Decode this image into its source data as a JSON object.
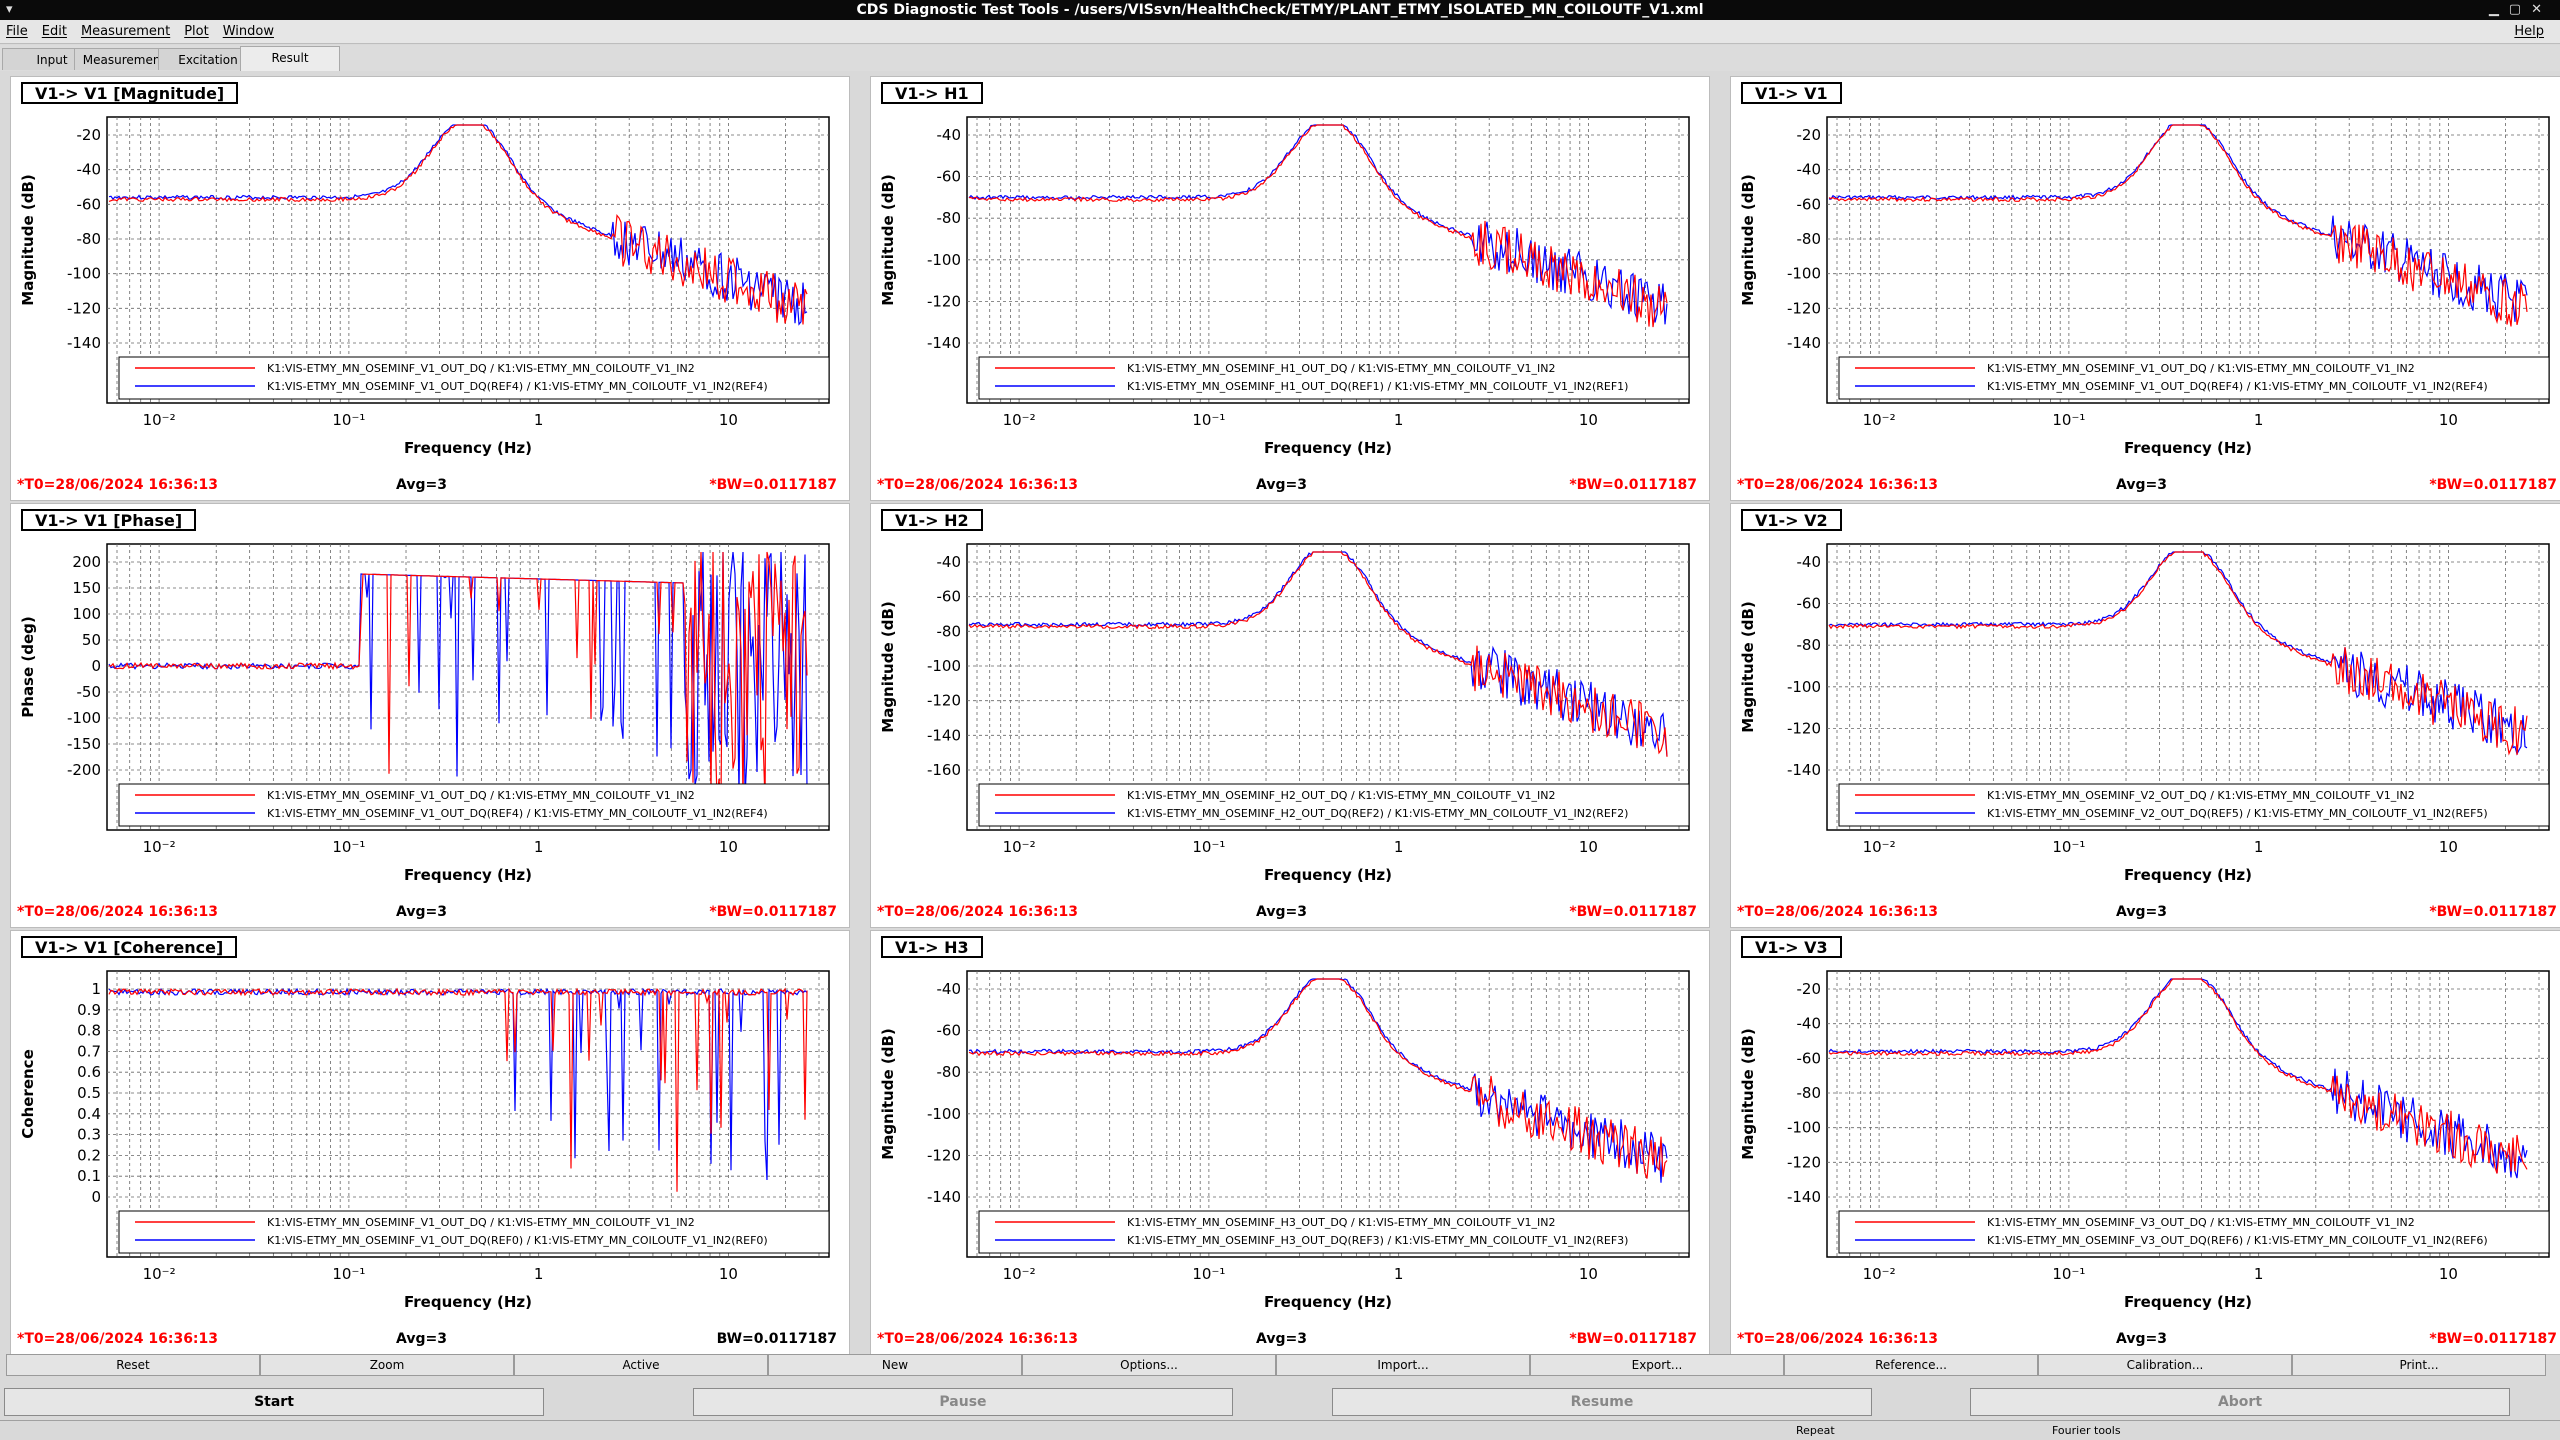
{
  "window": {
    "title": "CDS Diagnostic Test Tools - /users/VISsvn/HealthCheck/ETMY/PLANT_ETMY_ISOLATED_MN_COILOUTF_V1.xml"
  },
  "menu": [
    "File",
    "Edit",
    "Measurement",
    "Plot",
    "Window"
  ],
  "menu_help": "Help",
  "tabs": [
    "Input",
    "Measurement",
    "Excitation",
    "Result"
  ],
  "selected_tab": "Result",
  "common": {
    "t0": "*T0=28/06/2024 16:36:13",
    "avg": "Avg=3",
    "bw_star": "*BW=0.0117187",
    "bw_plain": "BW=0.0117187",
    "xlabel": "Frequency (Hz)",
    "xticks": [
      "10⁻²",
      "10⁻¹",
      "1",
      "10"
    ]
  },
  "colors": {
    "ref": "#0000ff",
    "live": "#ff0000",
    "title_red": "#ff0000"
  },
  "panels": [
    {
      "title": "V1-> V1 [Magnitude]",
      "ylabel": "Magnitude (dB)",
      "yticks": [
        "-20",
        "-40",
        "-60",
        "-80",
        "-100",
        "-120",
        "-140"
      ],
      "legend": [
        "K1:VIS-ETMY_MN_OSEMINF_V1_OUT_DQ / K1:VIS-ETMY_MN_COILOUTF_V1_IN2",
        "K1:VIS-ETMY_MN_OSEMINF_V1_OUT_DQ(REF4) / K1:VIS-ETMY_MN_COILOUTF_V1_IN2(REF4)"
      ],
      "bw": "star"
    },
    {
      "title": "V1-> H1",
      "ylabel": "Magnitude (dB)",
      "yticks": [
        "-40",
        "-60",
        "-80",
        "-100",
        "-120",
        "-140"
      ],
      "legend": [
        "K1:VIS-ETMY_MN_OSEMINF_H1_OUT_DQ / K1:VIS-ETMY_MN_COILOUTF_V1_IN2",
        "K1:VIS-ETMY_MN_OSEMINF_H1_OUT_DQ(REF1) / K1:VIS-ETMY_MN_COILOUTF_V1_IN2(REF1)"
      ],
      "bw": "star"
    },
    {
      "title": "V1-> V1",
      "ylabel": "Magnitude (dB)",
      "yticks": [
        "-20",
        "-40",
        "-60",
        "-80",
        "-100",
        "-120",
        "-140"
      ],
      "legend": [
        "K1:VIS-ETMY_MN_OSEMINF_V1_OUT_DQ / K1:VIS-ETMY_MN_COILOUTF_V1_IN2",
        "K1:VIS-ETMY_MN_OSEMINF_V1_OUT_DQ(REF4) / K1:VIS-ETMY_MN_COILOUTF_V1_IN2(REF4)"
      ],
      "bw": "star"
    },
    {
      "title": "V1-> V1 [Phase]",
      "ylabel": "Phase (deg)",
      "yticks": [
        "200",
        "150",
        "100",
        "50",
        "0",
        "-50",
        "-100",
        "-150",
        "-200"
      ],
      "legend": [
        "K1:VIS-ETMY_MN_OSEMINF_V1_OUT_DQ / K1:VIS-ETMY_MN_COILOUTF_V1_IN2",
        "K1:VIS-ETMY_MN_OSEMINF_V1_OUT_DQ(REF4) / K1:VIS-ETMY_MN_COILOUTF_V1_IN2(REF4)"
      ],
      "bw": "star"
    },
    {
      "title": "V1-> H2",
      "ylabel": "Magnitude (dB)",
      "yticks": [
        "-40",
        "-60",
        "-80",
        "-100",
        "-120",
        "-140",
        "-160"
      ],
      "legend": [
        "K1:VIS-ETMY_MN_OSEMINF_H2_OUT_DQ / K1:VIS-ETMY_MN_COILOUTF_V1_IN2",
        "K1:VIS-ETMY_MN_OSEMINF_H2_OUT_DQ(REF2) / K1:VIS-ETMY_MN_COILOUTF_V1_IN2(REF2)"
      ],
      "bw": "star"
    },
    {
      "title": "V1-> V2",
      "ylabel": "Magnitude (dB)",
      "yticks": [
        "-40",
        "-60",
        "-80",
        "-100",
        "-120",
        "-140"
      ],
      "legend": [
        "K1:VIS-ETMY_MN_OSEMINF_V2_OUT_DQ / K1:VIS-ETMY_MN_COILOUTF_V1_IN2",
        "K1:VIS-ETMY_MN_OSEMINF_V2_OUT_DQ(REF5) / K1:VIS-ETMY_MN_COILOUTF_V1_IN2(REF5)"
      ],
      "bw": "star"
    },
    {
      "title": "V1-> V1 [Coherence]",
      "ylabel": "Coherence",
      "yticks": [
        "1",
        "0.9",
        "0.8",
        "0.7",
        "0.6",
        "0.5",
        "0.4",
        "0.3",
        "0.2",
        "0.1",
        "0"
      ],
      "legend": [
        "K1:VIS-ETMY_MN_OSEMINF_V1_OUT_DQ / K1:VIS-ETMY_MN_COILOUTF_V1_IN2",
        "K1:VIS-ETMY_MN_OSEMINF_V1_OUT_DQ(REF0) / K1:VIS-ETMY_MN_COILOUTF_V1_IN2(REF0)"
      ],
      "bw": "plain"
    },
    {
      "title": "V1-> H3",
      "ylabel": "Magnitude (dB)",
      "yticks": [
        "-40",
        "-60",
        "-80",
        "-100",
        "-120",
        "-140"
      ],
      "legend": [
        "K1:VIS-ETMY_MN_OSEMINF_H3_OUT_DQ / K1:VIS-ETMY_MN_COILOUTF_V1_IN2",
        "K1:VIS-ETMY_MN_OSEMINF_H3_OUT_DQ(REF3) / K1:VIS-ETMY_MN_COILOUTF_V1_IN2(REF3)"
      ],
      "bw": "star"
    },
    {
      "title": "V1-> V3",
      "ylabel": "Magnitude (dB)",
      "yticks": [
        "-20",
        "-40",
        "-60",
        "-80",
        "-100",
        "-120",
        "-140"
      ],
      "legend": [
        "K1:VIS-ETMY_MN_OSEMINF_V3_OUT_DQ / K1:VIS-ETMY_MN_COILOUTF_V1_IN2",
        "K1:VIS-ETMY_MN_OSEMINF_V3_OUT_DQ(REF6) / K1:VIS-ETMY_MN_COILOUTF_V1_IN2(REF6)"
      ],
      "bw": "star"
    }
  ],
  "toolbar": [
    "Reset",
    "Zoom",
    "Active",
    "New",
    "Options...",
    "Import...",
    "Export...",
    "Reference...",
    "Calibration...",
    "Print..."
  ],
  "controls": [
    "Start",
    "Pause",
    "Resume",
    "Abort"
  ],
  "status": {
    "repeat": "Repeat",
    "fourier": "Fourier tools"
  }
}
